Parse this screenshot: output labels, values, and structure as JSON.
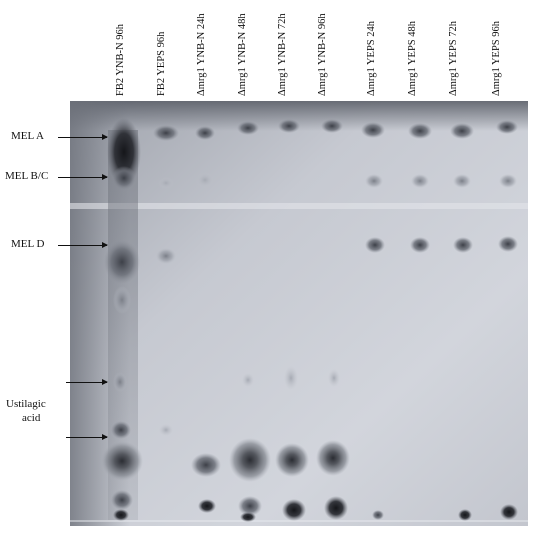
{
  "figure": {
    "lanes": [
      "FB2 YNB-N 96h",
      "FB2 YEPS 96h",
      "Δmrg1 YNB-N 24h",
      "Δmrg1 YNB-N 48h",
      "Δmrg1 YNB-N 72h",
      "Δmrg1 YNB-N 96h",
      "Δmrg1 YEPS 24h",
      "Δmrg1 YEPS 48h",
      "Δmrg1 YEPS 72h",
      "Δmrg1 YEPS 96h"
    ],
    "markers": {
      "mel_a": "MEL A",
      "mel_bc": "MEL B/C",
      "mel_d": "MEL D",
      "ustilagic_line1": "Ustilagic",
      "ustilagic_line2": "acid"
    },
    "colors": {
      "plate_light": "#cfd2da",
      "plate_dark": "#8a8e98",
      "spot_dark": "#1c1d22"
    }
  }
}
